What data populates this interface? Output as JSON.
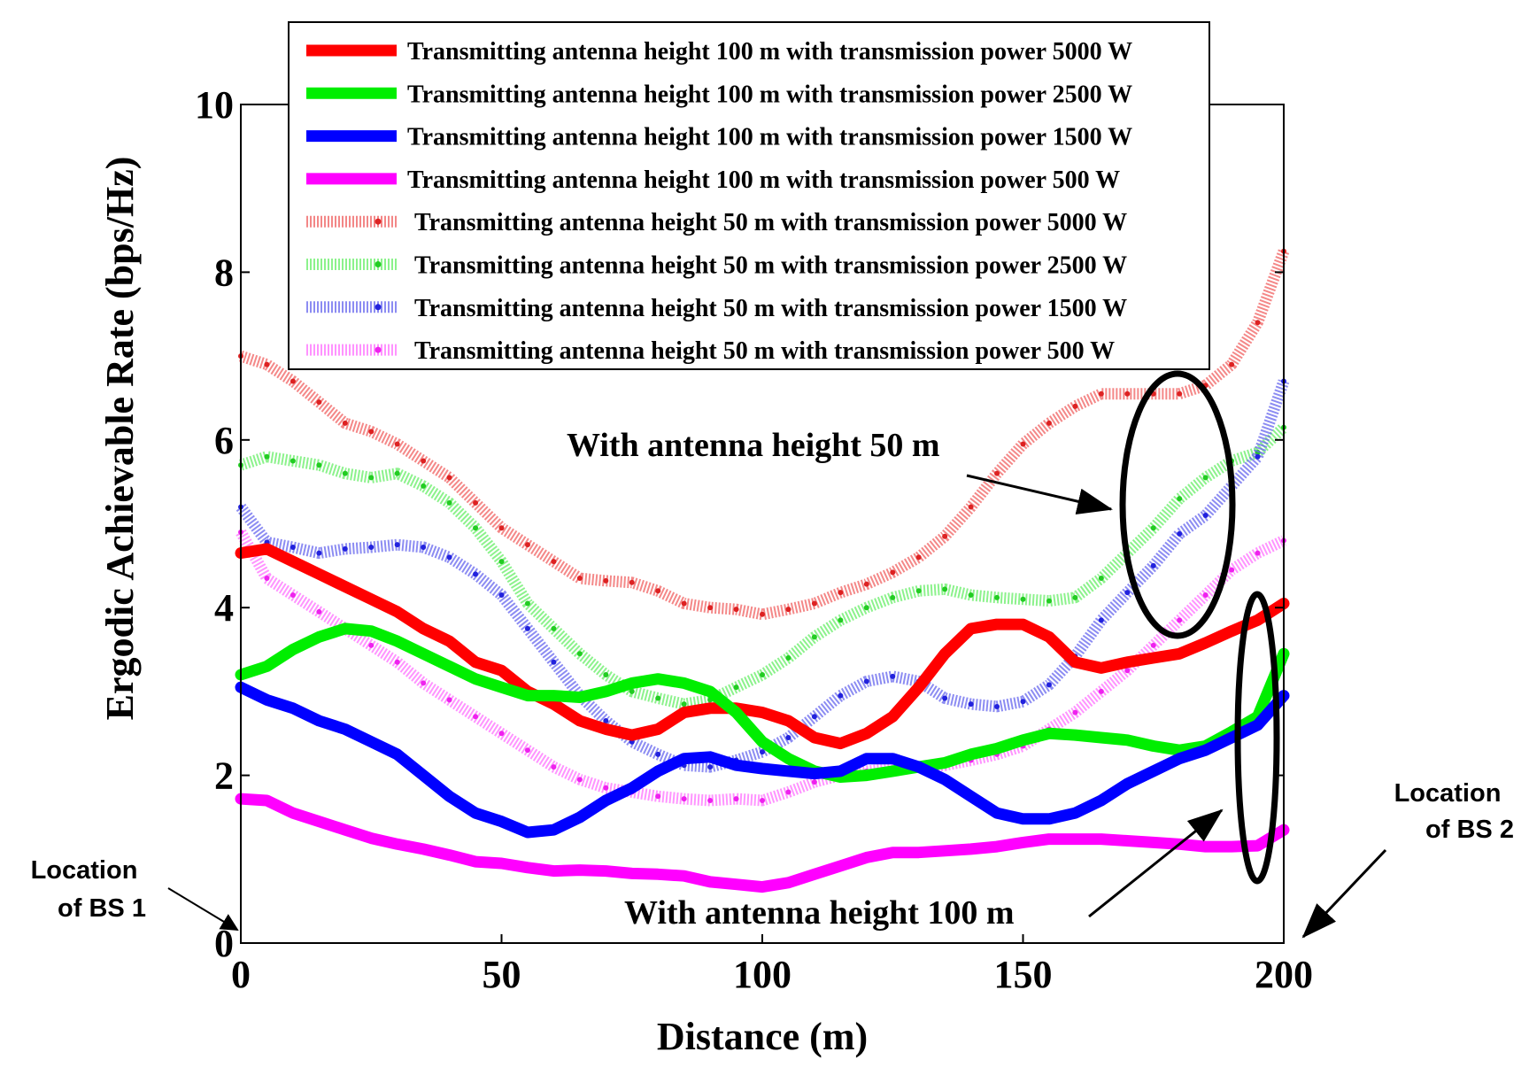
{
  "chart_data": {
    "type": "line",
    "xlabel": "Distance (m)",
    "ylabel": "Ergodic Achievable Rate (bps/Hz)",
    "xlim": [
      0,
      200
    ],
    "ylim": [
      0,
      10
    ],
    "xticks": [
      "0",
      "50",
      "100",
      "150",
      "200"
    ],
    "yticks": [
      "0",
      "2",
      "4",
      "6",
      "8",
      "10"
    ],
    "grid": false,
    "legend_position": "top",
    "x": [
      0,
      5,
      10,
      15,
      20,
      25,
      30,
      35,
      40,
      45,
      50,
      55,
      60,
      65,
      70,
      75,
      80,
      85,
      90,
      95,
      100,
      105,
      110,
      115,
      120,
      125,
      130,
      135,
      140,
      145,
      150,
      155,
      160,
      165,
      170,
      175,
      180,
      185,
      190,
      195,
      200
    ],
    "series": [
      {
        "name": "Transmitting antenna height 100 m with transmission power 5000 W",
        "color": "#ff0000",
        "style": "solid",
        "values": [
          4.65,
          4.7,
          4.55,
          4.4,
          4.25,
          4.1,
          3.95,
          3.75,
          3.6,
          3.35,
          3.25,
          3.0,
          2.85,
          2.65,
          2.55,
          2.48,
          2.55,
          2.75,
          2.8,
          2.8,
          2.75,
          2.65,
          2.45,
          2.38,
          2.5,
          2.7,
          3.05,
          3.45,
          3.75,
          3.8,
          3.8,
          3.65,
          3.35,
          3.28,
          3.35,
          3.4,
          3.45,
          3.58,
          3.72,
          3.85,
          4.05
        ]
      },
      {
        "name": "Transmitting antenna height 100 m with transmission power 2500 W",
        "color": "#00ee00",
        "style": "solid",
        "values": [
          3.2,
          3.3,
          3.5,
          3.65,
          3.75,
          3.72,
          3.6,
          3.45,
          3.3,
          3.15,
          3.05,
          2.95,
          2.95,
          2.93,
          3.0,
          3.1,
          3.15,
          3.1,
          3.0,
          2.75,
          2.4,
          2.2,
          2.05,
          1.98,
          2.0,
          2.05,
          2.1,
          2.15,
          2.25,
          2.32,
          2.42,
          2.5,
          2.48,
          2.45,
          2.42,
          2.35,
          2.3,
          2.35,
          2.52,
          2.7,
          3.45
        ]
      },
      {
        "name": "Transmitting antenna height 100 m with transmission power 1500 W",
        "color": "#0000ff",
        "style": "solid",
        "values": [
          3.05,
          2.9,
          2.8,
          2.65,
          2.55,
          2.4,
          2.25,
          2.0,
          1.75,
          1.55,
          1.45,
          1.32,
          1.35,
          1.5,
          1.7,
          1.85,
          2.05,
          2.2,
          2.22,
          2.12,
          2.08,
          2.05,
          2.02,
          2.05,
          2.2,
          2.2,
          2.1,
          1.95,
          1.75,
          1.55,
          1.48,
          1.48,
          1.55,
          1.7,
          1.9,
          2.05,
          2.2,
          2.3,
          2.45,
          2.6,
          2.95
        ]
      },
      {
        "name": "Transmitting antenna height 100 m with transmission power 500 W",
        "color": "#ff00ff",
        "style": "solid",
        "values": [
          1.72,
          1.7,
          1.55,
          1.45,
          1.35,
          1.25,
          1.18,
          1.12,
          1.05,
          0.97,
          0.95,
          0.9,
          0.86,
          0.87,
          0.86,
          0.83,
          0.82,
          0.8,
          0.73,
          0.7,
          0.67,
          0.72,
          0.82,
          0.92,
          1.02,
          1.08,
          1.08,
          1.1,
          1.12,
          1.15,
          1.2,
          1.24,
          1.24,
          1.24,
          1.22,
          1.2,
          1.18,
          1.15,
          1.15,
          1.16,
          1.35
        ]
      },
      {
        "name": "Transmitting antenna height 50 m with transmission power 5000 W",
        "color": "#f06060",
        "style": "dotted",
        "values": [
          7.0,
          6.9,
          6.7,
          6.45,
          6.2,
          6.1,
          5.95,
          5.75,
          5.55,
          5.25,
          4.95,
          4.75,
          4.55,
          4.35,
          4.32,
          4.3,
          4.2,
          4.05,
          4.0,
          3.98,
          3.92,
          3.98,
          4.05,
          4.18,
          4.28,
          4.42,
          4.6,
          4.85,
          5.2,
          5.6,
          5.95,
          6.2,
          6.4,
          6.55,
          6.55,
          6.55,
          6.55,
          6.65,
          6.9,
          7.4,
          8.25
        ]
      },
      {
        "name": "Transmitting antenna height 50 m with transmission power 2500 W",
        "color": "#66ee66",
        "style": "dotted",
        "values": [
          5.7,
          5.8,
          5.75,
          5.7,
          5.6,
          5.55,
          5.6,
          5.45,
          5.25,
          4.95,
          4.55,
          4.05,
          3.75,
          3.45,
          3.2,
          3.0,
          2.92,
          2.85,
          2.9,
          3.05,
          3.2,
          3.4,
          3.65,
          3.85,
          4.0,
          4.12,
          4.2,
          4.22,
          4.15,
          4.12,
          4.1,
          4.08,
          4.12,
          4.35,
          4.65,
          4.95,
          5.3,
          5.55,
          5.75,
          5.85,
          6.15
        ]
      },
      {
        "name": "Transmitting antenna height 50 m with transmission power 1500 W",
        "color": "#6666ee",
        "style": "dotted",
        "values": [
          5.2,
          4.78,
          4.72,
          4.65,
          4.7,
          4.72,
          4.75,
          4.72,
          4.6,
          4.4,
          4.15,
          3.75,
          3.35,
          2.95,
          2.65,
          2.4,
          2.25,
          2.12,
          2.1,
          2.18,
          2.28,
          2.45,
          2.7,
          2.95,
          3.12,
          3.18,
          3.12,
          2.92,
          2.85,
          2.82,
          2.88,
          3.08,
          3.42,
          3.85,
          4.18,
          4.5,
          4.88,
          5.1,
          5.45,
          5.8,
          6.7
        ]
      },
      {
        "name": "Transmitting antenna height 50 m with transmission power 500 W",
        "color": "#ff70ff",
        "style": "dotted",
        "values": [
          4.9,
          4.35,
          4.15,
          3.95,
          3.75,
          3.55,
          3.35,
          3.1,
          2.9,
          2.7,
          2.5,
          2.3,
          2.1,
          1.95,
          1.85,
          1.8,
          1.75,
          1.72,
          1.7,
          1.72,
          1.7,
          1.8,
          1.92,
          2.0,
          2.05,
          2.08,
          2.1,
          2.12,
          2.18,
          2.25,
          2.35,
          2.55,
          2.75,
          3.0,
          3.25,
          3.55,
          3.85,
          4.15,
          4.45,
          4.65,
          4.8
        ]
      }
    ],
    "annotations": [
      {
        "text": "With antenna height 50 m"
      },
      {
        "text": "With antenna height 100 m"
      },
      {
        "text_line1": "Location",
        "text_line2": "of BS 1"
      },
      {
        "text_line1": "Location",
        "text_line2": "of BS 2"
      }
    ]
  }
}
